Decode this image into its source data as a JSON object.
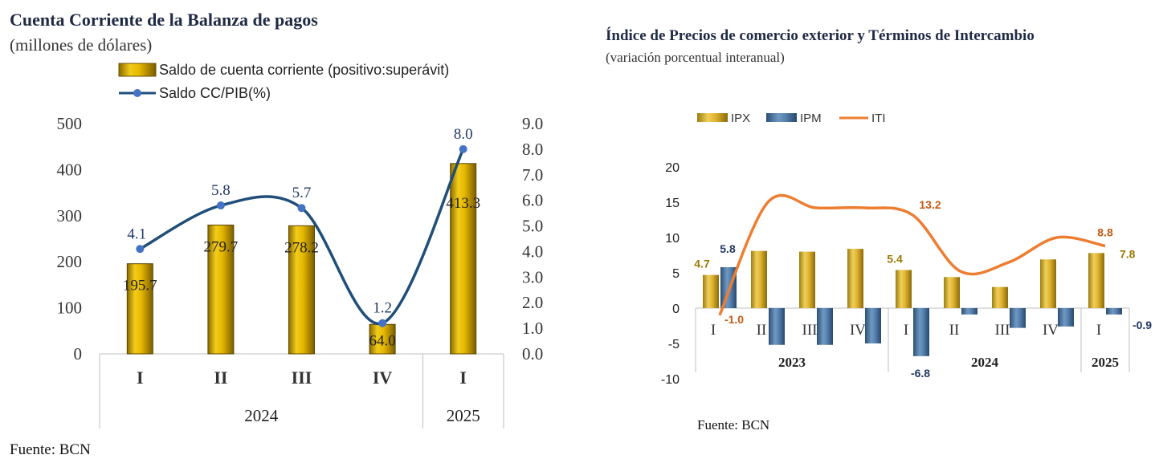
{
  "left": {
    "title": "Cuenta Corriente de la Balanza de pagos",
    "subtitle": "(millones de dólares)",
    "source": "Fuente: BCN",
    "colors": {
      "bar": "#e0b400",
      "line": "#1f4e79",
      "marker": "#4472c4"
    }
  },
  "right": {
    "title": "Índice de Precios de comercio exterior y Términos de Intercambio",
    "subtitle": "(variación porcentual interanual)",
    "source": "Fuente: BCN",
    "colors": {
      "ipx": "#d4a91c",
      "ipm": "#4a7aa8",
      "iti": "#ed7d31",
      "ipx_label": "#9a7a00",
      "ipm_label": "#1f3864",
      "iti_label": "#c55a11"
    }
  },
  "chart_data": [
    {
      "type": "bar",
      "title": "Cuenta Corriente de la Balanza de pagos",
      "subtitle": "(millones de dólares)",
      "categories": [
        "I",
        "II",
        "III",
        "IV",
        "I"
      ],
      "groups": [
        {
          "label": "2024",
          "span": 4
        },
        {
          "label": "2025",
          "span": 1
        }
      ],
      "series": [
        {
          "name": "Saldo de cuenta corriente (positivo:superávit)",
          "kind": "bar",
          "axis": "left",
          "values": [
            195.7,
            279.7,
            278.2,
            64.0,
            413.3
          ],
          "labels": [
            "195.7",
            "279.7",
            "278.2",
            "64.0",
            "413.3"
          ]
        },
        {
          "name": "Saldo CC/PIB(%)",
          "kind": "line",
          "axis": "right",
          "values": [
            4.1,
            5.8,
            5.7,
            1.2,
            8.0
          ],
          "labels": [
            "4.1",
            "5.8",
            "5.7",
            "1.2",
            "8.0"
          ]
        }
      ],
      "ylim": [
        0,
        500
      ],
      "yticks": [
        "0",
        "100",
        "200",
        "300",
        "400",
        "500"
      ],
      "y2lim": [
        0,
        9
      ],
      "y2ticks": [
        "0.0",
        "1.0",
        "2.0",
        "3.0",
        "4.0",
        "5.0",
        "6.0",
        "7.0",
        "8.0",
        "9.0"
      ],
      "legend": "top",
      "grid": false
    },
    {
      "type": "bar",
      "title": "Índice de Precios de comercio exterior y Términos de Intercambio",
      "subtitle": "(variación porcentual interanual)",
      "categories": [
        "I",
        "II",
        "III",
        "IV",
        "I",
        "II",
        "III",
        "IV",
        "I"
      ],
      "groups": [
        {
          "label": "2023",
          "span": 4
        },
        {
          "label": "2024",
          "span": 4
        },
        {
          "label": "2025",
          "span": 1
        }
      ],
      "series": [
        {
          "name": "IPX",
          "kind": "bar",
          "values": [
            4.7,
            8.1,
            8.0,
            8.4,
            5.4,
            4.4,
            3.0,
            6.9,
            7.8
          ],
          "labels": [
            "4.7",
            "",
            "",
            "",
            "5.4",
            "",
            "",
            "",
            "7.8"
          ]
        },
        {
          "name": "IPM",
          "kind": "bar",
          "values": [
            5.8,
            -5.2,
            -5.2,
            -5.0,
            -6.8,
            -0.9,
            -2.8,
            -2.6,
            -0.9
          ],
          "labels": [
            "5.8",
            "",
            "",
            "",
            "-6.8",
            "",
            "",
            "",
            "-0.9"
          ]
        },
        {
          "name": "ITI",
          "kind": "line",
          "values": [
            -1.0,
            15.0,
            14.2,
            14.2,
            13.2,
            5.2,
            6.5,
            10.0,
            8.8
          ],
          "labels": [
            "-1.0",
            "",
            "",
            "",
            "13.2",
            "",
            "",
            "",
            "8.8"
          ]
        }
      ],
      "ylim": [
        -10,
        20
      ],
      "yticks": [
        "-10",
        "-5",
        "0",
        "5",
        "10",
        "15",
        "20"
      ],
      "legend": "top",
      "grid": false
    }
  ]
}
